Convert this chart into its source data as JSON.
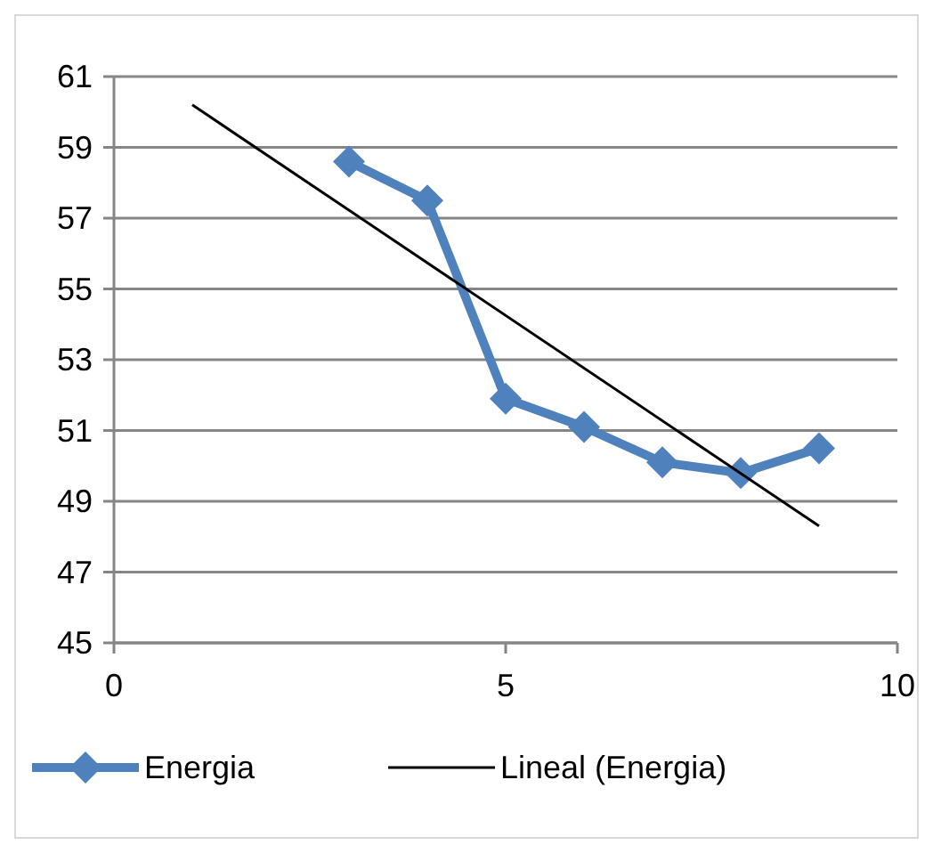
{
  "chart_data": {
    "type": "line",
    "series": [
      {
        "name": "Energia",
        "color": "#4f81bd",
        "x": [
          3,
          4,
          5,
          6,
          7,
          8,
          9
        ],
        "values": [
          58.6,
          57.5,
          51.9,
          51.1,
          50.1,
          49.8,
          50.5
        ],
        "marker": "diamond"
      },
      {
        "name": "Lineal (Energia)",
        "color": "#000000",
        "type": "line",
        "x": [
          1,
          9
        ],
        "values": [
          60.2,
          48.3
        ],
        "marker": "none"
      }
    ],
    "xlim": [
      0,
      10
    ],
    "xticks": [
      0,
      5,
      10
    ],
    "ylim": [
      45,
      61
    ],
    "yticks": [
      45,
      47,
      49,
      51,
      53,
      55,
      57,
      59,
      61
    ],
    "grid": "y",
    "legend": "bottom"
  }
}
